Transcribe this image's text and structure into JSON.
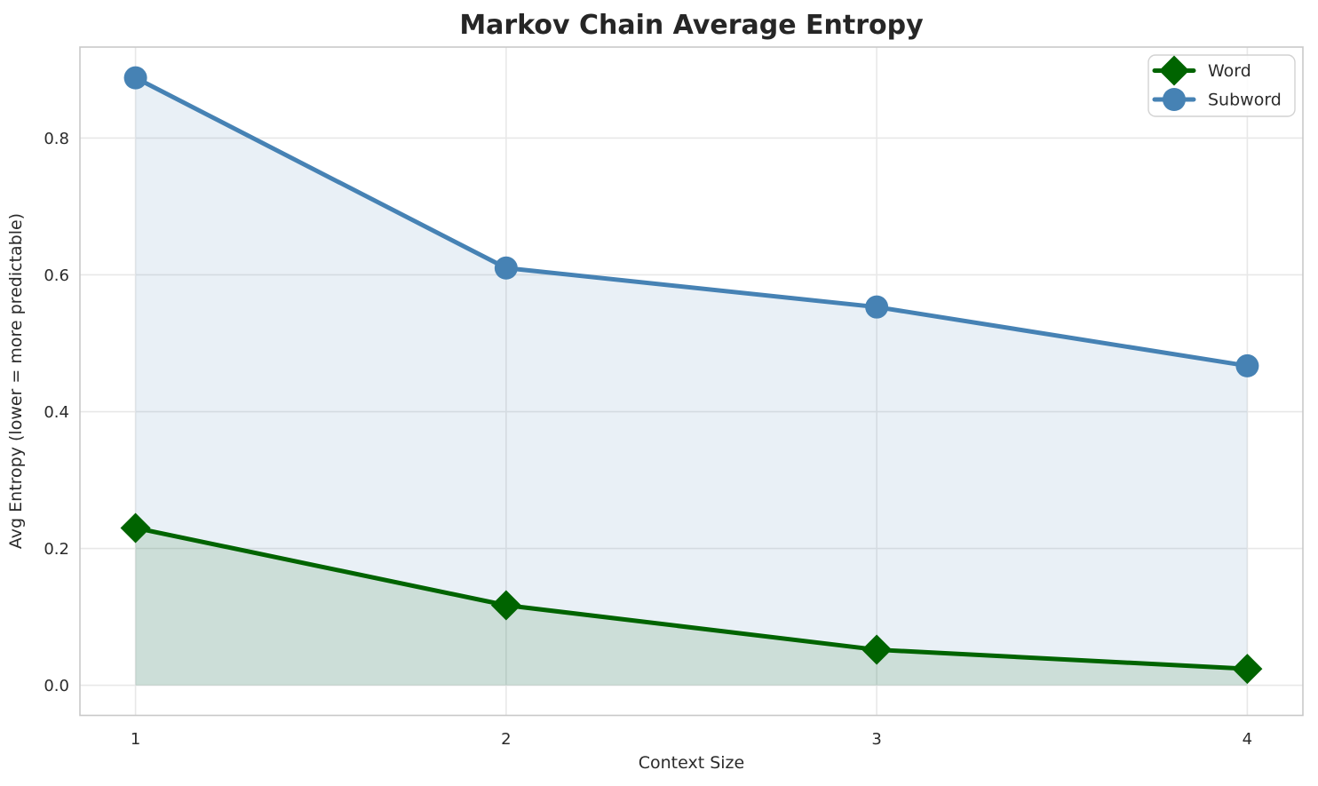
{
  "chart": {
    "title": "Markov Chain Average Entropy",
    "xlabel": "Context Size",
    "ylabel": "Avg Entropy (lower = more predictable)",
    "legend_labels": [
      "Word",
      "Subword"
    ]
  },
  "chart_data": {
    "type": "line",
    "title": "Markov Chain Average Entropy",
    "xlabel": "Context Size",
    "ylabel": "Avg Entropy (lower = more predictable)",
    "x": [
      1,
      2,
      3,
      4
    ],
    "x_tick_labels": [
      "1",
      "2",
      "3",
      "4"
    ],
    "y_ticks": [
      0.0,
      0.2,
      0.4,
      0.6,
      0.8
    ],
    "y_tick_labels": [
      "0.0",
      "0.2",
      "0.4",
      "0.6",
      "0.8"
    ],
    "xlim": [
      0.85,
      4.15
    ],
    "ylim": [
      -0.044,
      0.933
    ],
    "grid": true,
    "fill_to_zero": true,
    "legend_position": "upper right",
    "series": [
      {
        "name": "Word",
        "values": [
          0.23,
          0.117,
          0.052,
          0.024
        ],
        "color": "#006400",
        "fill_color": "rgba(0,100,0,0.12)",
        "marker": "diamond"
      },
      {
        "name": "Subword",
        "values": [
          0.888,
          0.61,
          0.553,
          0.467
        ],
        "color": "#4682B4",
        "fill_color": "rgba(70,130,180,0.12)",
        "marker": "circle"
      }
    ]
  }
}
